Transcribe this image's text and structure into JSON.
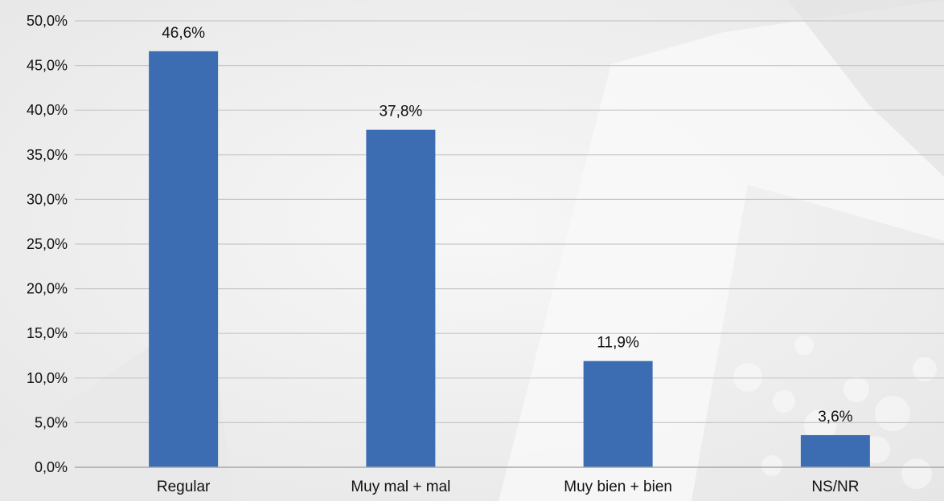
{
  "chart_data": {
    "type": "bar",
    "title": "",
    "xlabel": "",
    "ylabel": "",
    "categories": [
      "Regular",
      "Muy mal + mal",
      "Muy bien + bien",
      "NS/NR"
    ],
    "values": [
      46.6,
      37.8,
      11.9,
      3.6
    ],
    "data_labels": [
      "46,6%",
      "37,8%",
      "11,9%",
      "3,6%"
    ],
    "ylim": [
      0,
      50
    ],
    "y_ticks": [
      0,
      5,
      10,
      15,
      20,
      25,
      30,
      35,
      40,
      45,
      50
    ],
    "y_tick_labels": [
      "0,0%",
      "5,0%",
      "10,0%",
      "15,0%",
      "20,0%",
      "25,0%",
      "30,0%",
      "35,0%",
      "40,0%",
      "45,0%",
      "50,0%"
    ],
    "grid": true,
    "legend": "none",
    "colors": {
      "bar": "#3c6db3",
      "grid": "#c8c8c8",
      "axis": "#a8a8a8",
      "text": "#111111"
    }
  }
}
